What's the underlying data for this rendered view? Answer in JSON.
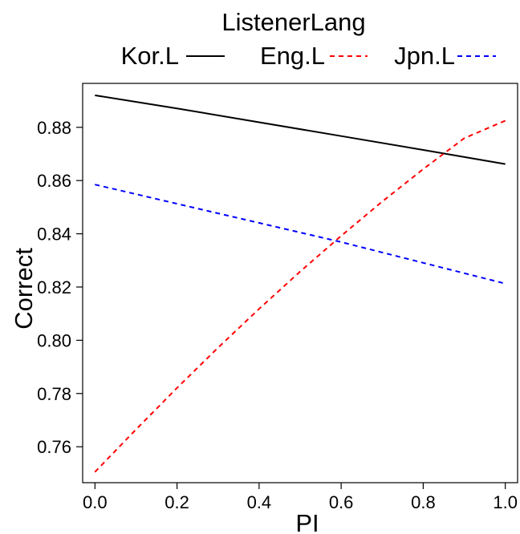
{
  "chart_data": {
    "type": "line",
    "xlabel": "PI",
    "ylabel": "Correct",
    "xlim": [
      -0.03,
      1.03
    ],
    "ylim": [
      0.7465,
      0.8965
    ],
    "x_ticks": [
      0.0,
      0.2,
      0.4,
      0.6,
      0.8,
      1.0
    ],
    "x_tick_labels": [
      "0.0",
      "0.2",
      "0.4",
      "0.6",
      "0.8",
      "1.0"
    ],
    "y_ticks": [
      0.76,
      0.78,
      0.8,
      0.82,
      0.84,
      0.86,
      0.88
    ],
    "y_tick_labels": [
      "0.76",
      "0.78",
      "0.80",
      "0.82",
      "0.84",
      "0.86",
      "0.88"
    ],
    "legend": {
      "title": "ListenerLang",
      "position": "top",
      "entries": [
        "Kor.L",
        "Eng.L",
        "Jpn.L"
      ]
    },
    "series": [
      {
        "name": "Kor.L",
        "color": "#000000",
        "dash": "solid",
        "x": [
          0.0,
          0.2,
          0.4,
          0.6,
          0.8,
          1.0
        ],
        "y": [
          0.892,
          0.8871,
          0.8819,
          0.8767,
          0.8715,
          0.8662
        ]
      },
      {
        "name": "Eng.L",
        "color": "#ff0000",
        "dash": "dashed",
        "x": [
          0.0,
          0.1,
          0.2,
          0.3,
          0.4,
          0.5,
          0.6,
          0.7,
          0.8,
          0.9,
          1.0
        ],
        "y": [
          0.7505,
          0.7665,
          0.7821,
          0.7972,
          0.8118,
          0.8258,
          0.8392,
          0.8521,
          0.8643,
          0.8759,
          0.8825
        ]
      },
      {
        "name": "Jpn.L",
        "color": "#0000ff",
        "dash": "dashed",
        "x": [
          0.0,
          0.2,
          0.4,
          0.6,
          0.8,
          1.0
        ],
        "y": [
          0.8585,
          0.8513,
          0.8441,
          0.8369,
          0.8291,
          0.8213
        ]
      }
    ]
  }
}
